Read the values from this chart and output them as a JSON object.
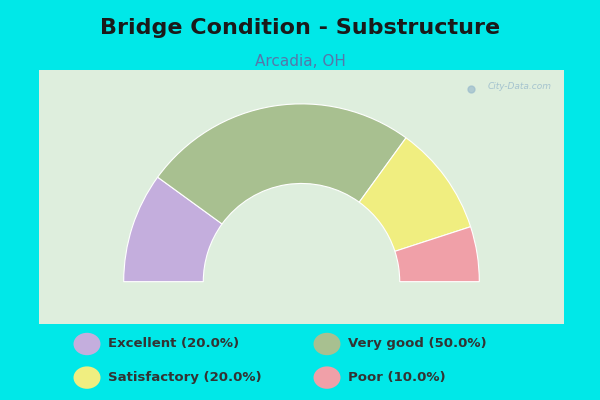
{
  "title": "Bridge Condition - Substructure",
  "subtitle": "Arcadia, OH",
  "background_color": "#00e8e8",
  "chart_bg_top": "#f0f5f0",
  "chart_bg_bottom": "#d8ede0",
  "segments": [
    {
      "label": "Excellent (20.0%)",
      "value": 20.0,
      "color": "#c4aedd"
    },
    {
      "label": "Very good (50.0%)",
      "value": 50.0,
      "color": "#a8c090"
    },
    {
      "label": "Satisfactory (20.0%)",
      "value": 20.0,
      "color": "#f0ee80"
    },
    {
      "label": "Poor (10.0%)",
      "value": 10.0,
      "color": "#f0a0a8"
    }
  ],
  "legend_colors": [
    "#c4aedd",
    "#a8c090",
    "#f0ee80",
    "#f0a0a8"
  ],
  "legend_labels": [
    "Excellent (20.0%)",
    "Very good (50.0%)",
    "Satisfactory (20.0%)",
    "Poor (10.0%)"
  ],
  "title_fontsize": 16,
  "subtitle_fontsize": 11,
  "title_color": "#1a1a1a",
  "subtitle_color": "#5577aa",
  "watermark": "City-Data.com",
  "outer_r": 1.05,
  "inner_r": 0.58
}
